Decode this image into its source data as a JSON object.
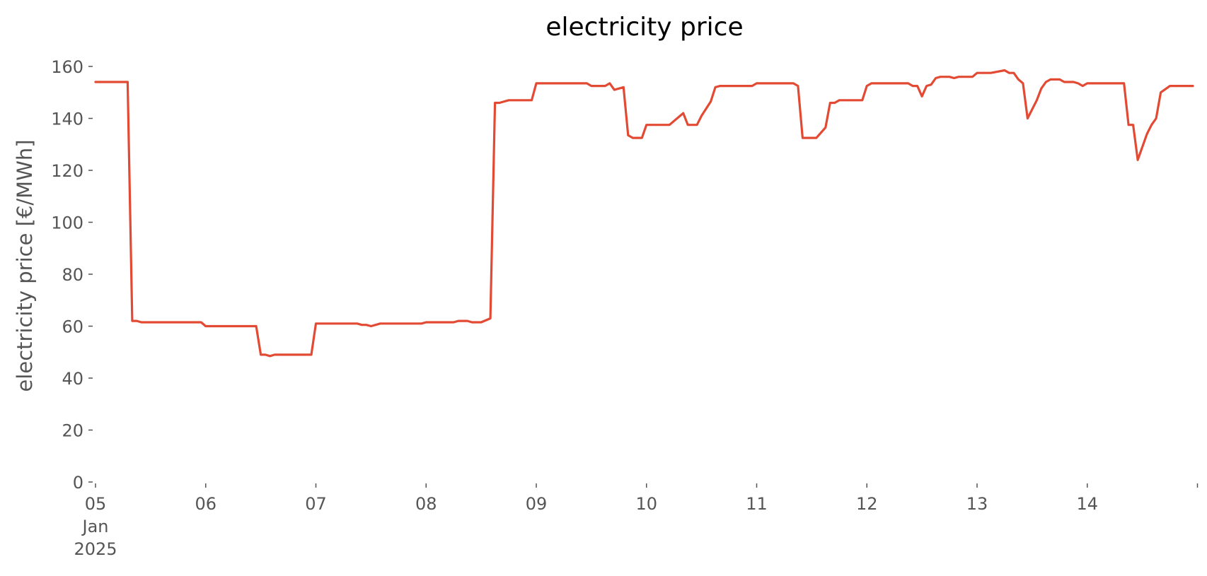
{
  "chart_data": {
    "type": "line",
    "title": "electricity price",
    "xlabel": "",
    "ylabel": "electricity price [€/MWh]",
    "ylim": [
      0,
      160
    ],
    "xlim": [
      "2025-01-05 00:00",
      "2025-01-14 23:00"
    ],
    "grid": false,
    "legend": "none",
    "y_ticks": [
      "0",
      "20",
      "40",
      "60",
      "80",
      "100",
      "120",
      "140",
      "160"
    ],
    "x_ticks": [
      {
        "at": "2025-01-05 00:00",
        "lines": [
          "05",
          "Jan",
          "2025"
        ]
      },
      {
        "at": "2025-01-06 00:00",
        "lines": [
          "06"
        ]
      },
      {
        "at": "2025-01-07 00:00",
        "lines": [
          "07"
        ]
      },
      {
        "at": "2025-01-08 00:00",
        "lines": [
          "08"
        ]
      },
      {
        "at": "2025-01-09 00:00",
        "lines": [
          "09"
        ]
      },
      {
        "at": "2025-01-10 00:00",
        "lines": [
          "10"
        ]
      },
      {
        "at": "2025-01-11 00:00",
        "lines": [
          "11"
        ]
      },
      {
        "at": "2025-01-12 00:00",
        "lines": [
          "12"
        ]
      },
      {
        "at": "2025-01-13 00:00",
        "lines": [
          "13"
        ]
      },
      {
        "at": "2025-01-14 00:00",
        "lines": [
          "14"
        ]
      },
      {
        "at": "2025-01-15 00:00",
        "lines": [
          ""
        ]
      }
    ],
    "series": [
      {
        "color": "#e24a33",
        "points": [
          [
            "2025-01-05 00:00",
            154
          ],
          [
            "2025-01-05 07:00",
            154
          ],
          [
            "2025-01-05 08:00",
            62
          ],
          [
            "2025-01-05 09:00",
            62
          ],
          [
            "2025-01-05 10:00",
            61.5
          ],
          [
            "2025-01-05 23:00",
            61.5
          ],
          [
            "2025-01-06 00:00",
            60
          ],
          [
            "2025-01-06 11:00",
            60
          ],
          [
            "2025-01-06 12:00",
            49
          ],
          [
            "2025-01-06 13:00",
            49
          ],
          [
            "2025-01-06 14:00",
            48.5
          ],
          [
            "2025-01-06 15:00",
            49
          ],
          [
            "2025-01-06 23:00",
            49
          ],
          [
            "2025-01-07 00:00",
            61
          ],
          [
            "2025-01-07 09:00",
            61
          ],
          [
            "2025-01-07 10:00",
            60.5
          ],
          [
            "2025-01-07 11:00",
            60.5
          ],
          [
            "2025-01-07 12:00",
            60
          ],
          [
            "2025-01-07 14:00",
            61
          ],
          [
            "2025-01-07 23:00",
            61
          ],
          [
            "2025-01-08 00:00",
            61.5
          ],
          [
            "2025-01-08 06:00",
            61.5
          ],
          [
            "2025-01-08 07:00",
            62
          ],
          [
            "2025-01-08 09:00",
            62
          ],
          [
            "2025-01-08 10:00",
            61.5
          ],
          [
            "2025-01-08 12:00",
            61.5
          ],
          [
            "2025-01-08 14:00",
            63
          ],
          [
            "2025-01-08 15:00",
            146
          ],
          [
            "2025-01-08 16:00",
            146
          ],
          [
            "2025-01-08 17:00",
            146.5
          ],
          [
            "2025-01-08 18:00",
            147
          ],
          [
            "2025-01-08 23:00",
            147
          ],
          [
            "2025-01-09 00:00",
            153.5
          ],
          [
            "2025-01-09 11:00",
            153.5
          ],
          [
            "2025-01-09 12:00",
            152.5
          ],
          [
            "2025-01-09 15:00",
            152.5
          ],
          [
            "2025-01-09 16:00",
            153.5
          ],
          [
            "2025-01-09 17:00",
            151
          ],
          [
            "2025-01-09 19:00",
            152
          ],
          [
            "2025-01-09 20:00",
            133.5
          ],
          [
            "2025-01-09 21:00",
            132.5
          ],
          [
            "2025-01-09 23:00",
            132.5
          ],
          [
            "2025-01-10 00:00",
            137.5
          ],
          [
            "2025-01-10 05:00",
            137.5
          ],
          [
            "2025-01-10 08:00",
            142
          ],
          [
            "2025-01-10 09:00",
            137.5
          ],
          [
            "2025-01-10 11:00",
            137.5
          ],
          [
            "2025-01-10 12:00",
            141
          ],
          [
            "2025-01-10 14:00",
            146.5
          ],
          [
            "2025-01-10 15:00",
            152
          ],
          [
            "2025-01-10 16:00",
            152.5
          ],
          [
            "2025-01-10 23:00",
            152.5
          ],
          [
            "2025-01-11 00:00",
            153.5
          ],
          [
            "2025-01-11 08:00",
            153.5
          ],
          [
            "2025-01-11 09:00",
            152.5
          ],
          [
            "2025-01-11 10:00",
            132.5
          ],
          [
            "2025-01-11 13:00",
            132.5
          ],
          [
            "2025-01-11 15:00",
            136.5
          ],
          [
            "2025-01-11 16:00",
            146
          ],
          [
            "2025-01-11 17:00",
            146
          ],
          [
            "2025-01-11 18:00",
            147
          ],
          [
            "2025-01-11 23:00",
            147
          ],
          [
            "2025-01-12 00:00",
            152.5
          ],
          [
            "2025-01-12 01:00",
            153.5
          ],
          [
            "2025-01-12 09:00",
            153.5
          ],
          [
            "2025-01-12 10:00",
            152.5
          ],
          [
            "2025-01-12 11:00",
            152.5
          ],
          [
            "2025-01-12 12:00",
            148.5
          ],
          [
            "2025-01-12 13:00",
            152.5
          ],
          [
            "2025-01-12 14:00",
            153
          ],
          [
            "2025-01-12 15:00",
            155.5
          ],
          [
            "2025-01-12 16:00",
            156
          ],
          [
            "2025-01-12 18:00",
            156
          ],
          [
            "2025-01-12 19:00",
            155.5
          ],
          [
            "2025-01-12 20:00",
            156
          ],
          [
            "2025-01-12 23:00",
            156
          ],
          [
            "2025-01-13 00:00",
            157.5
          ],
          [
            "2025-01-13 03:00",
            157.5
          ],
          [
            "2025-01-13 06:00",
            158.5
          ],
          [
            "2025-01-13 07:00",
            157.5
          ],
          [
            "2025-01-13 08:00",
            157.5
          ],
          [
            "2025-01-13 09:00",
            155
          ],
          [
            "2025-01-13 10:00",
            153.5
          ],
          [
            "2025-01-13 11:00",
            140
          ],
          [
            "2025-01-13 13:00",
            147
          ],
          [
            "2025-01-13 14:00",
            151.5
          ],
          [
            "2025-01-13 15:00",
            154
          ],
          [
            "2025-01-13 16:00",
            155
          ],
          [
            "2025-01-13 18:00",
            155
          ],
          [
            "2025-01-13 19:00",
            154
          ],
          [
            "2025-01-13 21:00",
            154
          ],
          [
            "2025-01-13 22:00",
            153.5
          ],
          [
            "2025-01-13 23:00",
            152.5
          ],
          [
            "2025-01-14 00:00",
            153.5
          ],
          [
            "2025-01-14 08:00",
            153.5
          ],
          [
            "2025-01-14 09:00",
            137.5
          ],
          [
            "2025-01-14 10:00",
            137.5
          ],
          [
            "2025-01-14 11:00",
            124
          ],
          [
            "2025-01-14 13:00",
            134
          ],
          [
            "2025-01-14 14:00",
            137.5
          ],
          [
            "2025-01-14 15:00",
            140
          ],
          [
            "2025-01-14 16:00",
            150
          ],
          [
            "2025-01-14 18:00",
            152.5
          ],
          [
            "2025-01-14 23:00",
            152.5
          ]
        ]
      }
    ]
  }
}
